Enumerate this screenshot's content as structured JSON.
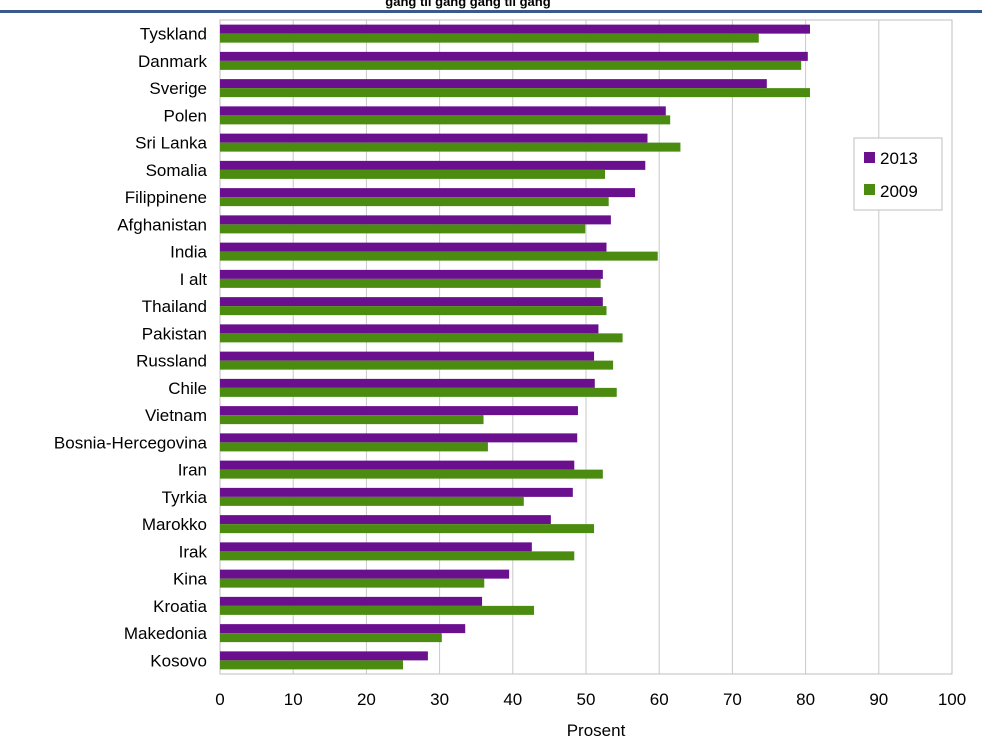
{
  "chart_data": {
    "type": "bar",
    "orientation": "horizontal",
    "categories": [
      "Tyskland",
      "Danmark",
      "Sverige",
      "Polen",
      "Sri Lanka",
      "Somalia",
      "Filippinene",
      "Afghanistan",
      "India",
      "I alt",
      "Thailand",
      "Pakistan",
      "Russland",
      "Chile",
      "Vietnam",
      "Bosnia-Hercegovina",
      "Iran",
      "Tyrkia",
      "Marokko",
      "Irak",
      "Kina",
      "Kroatia",
      "Makedonia",
      "Kosovo"
    ],
    "series": [
      {
        "name": "2013",
        "color": "#6a0f8e",
        "values": [
          80.6,
          80.3,
          74.7,
          60.9,
          58.4,
          58.1,
          56.7,
          53.4,
          52.8,
          52.3,
          52.3,
          51.7,
          51.1,
          51.2,
          48.9,
          48.8,
          48.4,
          48.2,
          45.2,
          42.6,
          39.5,
          35.8,
          33.5,
          28.4
        ]
      },
      {
        "name": "2009",
        "color": "#4a8b10",
        "values": [
          73.6,
          79.4,
          80.6,
          61.5,
          62.9,
          52.6,
          53.1,
          49.9,
          59.8,
          52.0,
          52.8,
          55.0,
          53.7,
          54.2,
          36.0,
          36.6,
          52.3,
          41.5,
          51.1,
          48.4,
          36.1,
          42.9,
          30.3,
          25.0
        ]
      }
    ],
    "xlabel": "Prosent",
    "xlim": [
      0,
      100
    ],
    "xticks": [
      "0",
      "10",
      "20",
      "30",
      "40",
      "50",
      "60",
      "70",
      "80",
      "90",
      "100"
    ],
    "grid": true,
    "legend_position": "right",
    "title_fragment": "gang til gang       gang til gang"
  }
}
